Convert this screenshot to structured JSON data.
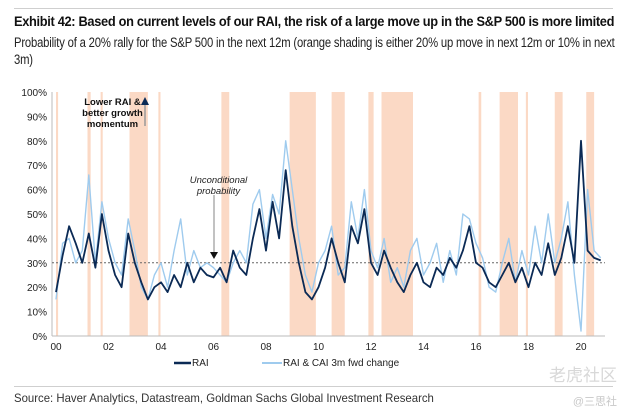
{
  "title": "Exhibit 42: Based on current levels of our RAI, the risk of a large move up in the S&P 500 is more limited",
  "subtitle": "Probability of a 20% rally for the S&P 500 in the next 12m (orange shading is either 20% up move in next 12m or 10% in next 3m)",
  "source": "Source: Haver Analytics, Datastream, Goldman Sachs Global Investment Research",
  "watermark": [
    "老虎社区",
    "@三思社"
  ],
  "chart_data": {
    "type": "line",
    "title": "",
    "xlabel": "",
    "ylabel": "",
    "xlim": [
      2000,
      2021
    ],
    "ylim": [
      0,
      100
    ],
    "x_ticks": [
      2000,
      2002,
      2004,
      2006,
      2008,
      2010,
      2012,
      2014,
      2016,
      2018,
      2020
    ],
    "x_tick_labels": [
      "00",
      "02",
      "04",
      "06",
      "08",
      "10",
      "12",
      "14",
      "16",
      "18",
      "20"
    ],
    "y_ticks": [
      0,
      10,
      20,
      30,
      40,
      50,
      60,
      70,
      80,
      90,
      100
    ],
    "y_tick_labels": [
      "0%",
      "10%",
      "20%",
      "30%",
      "40%",
      "50%",
      "60%",
      "70%",
      "80%",
      "90%",
      "100%"
    ],
    "grid": false,
    "legend_placement": "bottom",
    "reference_line": {
      "value": 30,
      "style": "dashed"
    },
    "shading_color": "#fbd9c5",
    "shaded_periods": [
      [
        2000.0,
        2000.08
      ],
      [
        2001.2,
        2001.32
      ],
      [
        2001.7,
        2001.78
      ],
      [
        2002.8,
        2003.5
      ],
      [
        2003.9,
        2003.98
      ],
      [
        2006.3,
        2006.6
      ],
      [
        2008.9,
        2009.9
      ],
      [
        2010.5,
        2011.0
      ],
      [
        2011.9,
        2012.1
      ],
      [
        2012.4,
        2013.6
      ],
      [
        2016.1,
        2016.2
      ],
      [
        2016.9,
        2017.6
      ],
      [
        2017.9,
        2017.98
      ],
      [
        2019.0,
        2019.3
      ],
      [
        2020.2,
        2020.5
      ]
    ],
    "annotations": [
      {
        "text": [
          "Lower RAI &",
          "better growth",
          "momentum"
        ],
        "x": 2002.0,
        "y": 94,
        "arrow": "up"
      },
      {
        "text": [
          "Unconditional",
          "probability"
        ],
        "x": 2006.0,
        "y": 68,
        "arrow": "down-to-30"
      }
    ],
    "series": [
      {
        "name": "RAI",
        "color": "#0b2a55",
        "x_start": 2000,
        "step": 0.25,
        "values": [
          18,
          33,
          45,
          38,
          30,
          42,
          28,
          50,
          35,
          25,
          20,
          42,
          30,
          22,
          15,
          20,
          22,
          18,
          25,
          20,
          30,
          22,
          28,
          25,
          24,
          28,
          22,
          35,
          28,
          25,
          40,
          52,
          35,
          55,
          40,
          68,
          45,
          30,
          18,
          15,
          20,
          28,
          40,
          30,
          22,
          45,
          38,
          52,
          30,
          25,
          35,
          28,
          22,
          18,
          25,
          30,
          22,
          20,
          28,
          25,
          32,
          28,
          35,
          45,
          30,
          28,
          22,
          20,
          25,
          30,
          22,
          28,
          20,
          30,
          25,
          38,
          25,
          32,
          45,
          30,
          80,
          35,
          32,
          31
        ]
      },
      {
        "name": "RAI & CAI 3m fwd change",
        "color": "#9fcbee",
        "x_start": 2000,
        "step": 0.25,
        "values": [
          15,
          38,
          40,
          30,
          35,
          66,
          30,
          55,
          40,
          30,
          25,
          48,
          35,
          20,
          15,
          25,
          30,
          20,
          35,
          48,
          25,
          35,
          28,
          30,
          28,
          25,
          22,
          30,
          35,
          30,
          54,
          60,
          40,
          58,
          50,
          80,
          60,
          40,
          25,
          18,
          30,
          35,
          45,
          25,
          28,
          55,
          40,
          60,
          35,
          28,
          40,
          22,
          28,
          20,
          35,
          40,
          25,
          30,
          38,
          22,
          35,
          25,
          50,
          48,
          38,
          32,
          20,
          18,
          30,
          40,
          22,
          35,
          25,
          45,
          30,
          50,
          30,
          40,
          55,
          25,
          2,
          60,
          35,
          32
        ]
      }
    ]
  }
}
